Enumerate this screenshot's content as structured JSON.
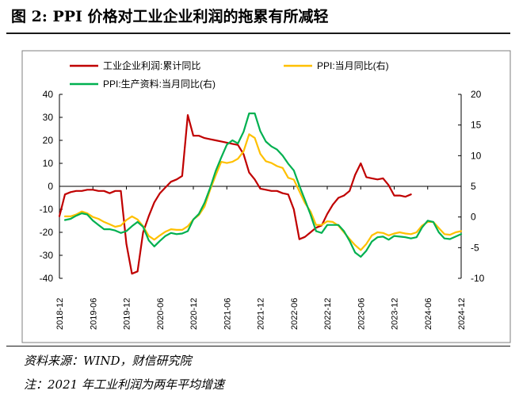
{
  "figure": {
    "title": "图 2:    PPI 价格对工业企业利润的拖累有所减轻",
    "source": "资料来源：WIND，财信研究院",
    "note": "注：2021 年工业利润为两年平均增速"
  },
  "chart_data": {
    "type": "line",
    "x_ticks": [
      "2018-12",
      "2019-06",
      "2019-12",
      "2020-06",
      "2020-12",
      "2021-06",
      "2021-12",
      "2022-06",
      "2022-12",
      "2023-06",
      "2023-12",
      "2024-06",
      "2024-12"
    ],
    "y_left": {
      "range": [
        -40,
        40
      ],
      "ticks": [
        40,
        30,
        20,
        10,
        0,
        -10,
        -20,
        -30,
        -40
      ]
    },
    "y_right": {
      "range": [
        -10,
        20
      ],
      "ticks": [
        20,
        15,
        10,
        5,
        0,
        -5,
        -10
      ]
    },
    "grid": false,
    "legend_position": "top",
    "series": [
      {
        "name": "工业企业利润:累计同比",
        "axis": "left",
        "color": "#c00000",
        "start": "2018-12",
        "values": [
          -13,
          -3.5,
          -2.5,
          -2,
          -2,
          -1.5,
          -1.5,
          -2,
          -2,
          -3,
          -2,
          -2,
          -25,
          -38,
          -37,
          -20,
          -13,
          -7,
          -3,
          -0.5,
          2,
          3,
          4.5,
          31,
          22,
          22,
          21,
          20.5,
          20,
          19.5,
          19,
          18.5,
          18,
          14,
          6,
          3,
          -1,
          -1.5,
          -2,
          -2,
          -3,
          -3.5,
          -10,
          -23,
          -22,
          -20,
          -18,
          -17,
          -12,
          -8,
          -5,
          -4,
          -2,
          5,
          10,
          4,
          3.5,
          3,
          3.5,
          0.5,
          -4,
          -4,
          -4.5,
          -3.5
        ]
      },
      {
        "name": "PPI:当月同比(右)",
        "axis": "right",
        "color": "#ffc000",
        "start": "2019-01",
        "values": [
          0.1,
          0.1,
          0.4,
          0.9,
          0.6,
          0,
          -0.3,
          -0.8,
          -1.2,
          -1.6,
          -1.4,
          -0.5,
          0.1,
          -0.4,
          -1.5,
          -3.1,
          -3.7,
          -3,
          -2.4,
          -2,
          -2.1,
          -2.1,
          -1.5,
          -0.4,
          0.3,
          1.7,
          4.4,
          6.8,
          9,
          8.8,
          9,
          9.5,
          10.7,
          13.5,
          12.9,
          10.3,
          9.1,
          8.8,
          8.3,
          8,
          6.4,
          6.1,
          4.2,
          2.3,
          0.9,
          -1.3,
          -1.3,
          -0.7,
          -0.8,
          -1.4,
          -2.5,
          -3.6,
          -4.6,
          -5.4,
          -4.4,
          -3,
          -2.5,
          -2.6,
          -3,
          -2.7,
          -2.5,
          -2.7,
          -2.8,
          -2.5,
          -1.4,
          -0.8,
          -0.8,
          -1.8,
          -2.8,
          -2.9,
          -2.5,
          -2.3
        ]
      },
      {
        "name": "PPI:生产资料:当月同比(右)",
        "axis": "right",
        "color": "#00b050",
        "start": "2019-01",
        "values": [
          -0.5,
          -0.3,
          0.2,
          0.6,
          0.4,
          -0.6,
          -1.3,
          -2,
          -2,
          -2.2,
          -2.6,
          -2.3,
          -1.5,
          -0.8,
          -1.6,
          -3.8,
          -4.8,
          -3.9,
          -3.1,
          -2.6,
          -2.8,
          -2.7,
          -2.3,
          -0.4,
          0.5,
          2.3,
          4.7,
          7.5,
          9.7,
          11.8,
          12.5,
          12,
          13.9,
          16.9,
          16.9,
          14,
          12.3,
          11.5,
          11,
          10,
          8.7,
          7.6,
          5.1,
          2.8,
          0.4,
          -2.3,
          -2.6,
          -1.3,
          -1.3,
          -1.3,
          -2.3,
          -3.9,
          -5.8,
          -6.5,
          -5.5,
          -4,
          -3.3,
          -3.2,
          -3.7,
          -3.1,
          -3.2,
          -3.3,
          -3.5,
          -3.3,
          -1.7,
          -0.6,
          -0.8,
          -2.5,
          -3.5,
          -3.6,
          -3.2,
          -2.8
        ]
      }
    ]
  }
}
